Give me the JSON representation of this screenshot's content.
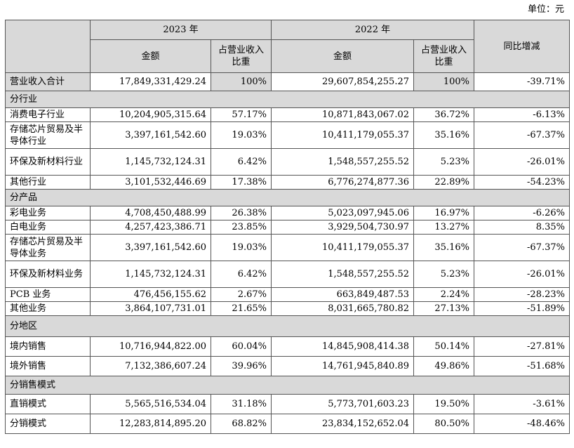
{
  "unit_label": "单位：元",
  "header": {
    "year_2023": "2023 年",
    "year_2022": "2022 年",
    "amount": "金额",
    "share": "占营业收入比重",
    "yoy": "同比增减"
  },
  "total": {
    "label": "营业收入合计",
    "amt2023": "17,849,331,429.24",
    "pct2023": "100%",
    "amt2022": "29,607,854,255.27",
    "pct2022": "100%",
    "yoy": "-39.71%"
  },
  "sections": [
    {
      "title": "分行业",
      "rows": [
        {
          "label": "消费电子行业",
          "amt2023": "10,204,905,315.64",
          "pct2023": "57.17%",
          "amt2022": "10,871,843,067.02",
          "pct2022": "36.72%",
          "yoy": "-6.13%"
        },
        {
          "label": "存储芯片贸易及半导体行业",
          "amt2023": "3,397,161,542.60",
          "pct2023": "19.03%",
          "amt2022": "10,411,179,055.37",
          "pct2022": "35.16%",
          "yoy": "-67.37%"
        },
        {
          "label": "环保及新材料行业",
          "amt2023": "1,145,732,124.31",
          "pct2023": "6.42%",
          "amt2022": "1,548,557,255.52",
          "pct2022": "5.23%",
          "yoy": "-26.01%"
        },
        {
          "label": "其他行业",
          "amt2023": "3,101,532,446.69",
          "pct2023": "17.38%",
          "amt2022": "6,776,274,877.36",
          "pct2022": "22.89%",
          "yoy": "-54.23%"
        }
      ]
    },
    {
      "title": "分产品",
      "rows": [
        {
          "label": "彩电业务",
          "amt2023": "4,708,450,488.99",
          "pct2023": "26.38%",
          "amt2022": "5,023,097,945.06",
          "pct2022": "16.97%",
          "yoy": "-6.26%"
        },
        {
          "label": "白电业务",
          "amt2023": "4,257,423,386.71",
          "pct2023": "23.85%",
          "amt2022": "3,929,504,730.97",
          "pct2022": "13.27%",
          "yoy": "8.35%"
        },
        {
          "label": "存储芯片贸易及半导体业务",
          "amt2023": "3,397,161,542.60",
          "pct2023": "19.03%",
          "amt2022": "10,411,179,055.37",
          "pct2022": "35.16%",
          "yoy": "-67.37%"
        },
        {
          "label": "环保及新材料业务",
          "amt2023": "1,145,732,124.31",
          "pct2023": "6.42%",
          "amt2022": "1,548,557,255.52",
          "pct2022": "5.23%",
          "yoy": "-26.01%"
        },
        {
          "label": "PCB 业务",
          "amt2023": "476,456,155.62",
          "pct2023": "2.67%",
          "amt2022": "663,849,487.53",
          "pct2022": "2.24%",
          "yoy": "-28.23%"
        },
        {
          "label": "其他业务",
          "amt2023": "3,864,107,731.01",
          "pct2023": "21.65%",
          "amt2022": "8,031,665,780.82",
          "pct2022": "27.13%",
          "yoy": "-51.89%"
        }
      ]
    },
    {
      "title": "分地区",
      "rows": [
        {
          "label": "境内销售",
          "amt2023": "10,716,944,822.00",
          "pct2023": "60.04%",
          "amt2022": "14,845,908,414.38",
          "pct2022": "50.14%",
          "yoy": "-27.81%"
        },
        {
          "label": "境外销售",
          "amt2023": "7,132,386,607.24",
          "pct2023": "39.96%",
          "amt2022": "14,761,945,840.89",
          "pct2022": "49.86%",
          "yoy": "-51.68%"
        }
      ]
    },
    {
      "title": "分销售模式",
      "rows": [
        {
          "label": "直销模式",
          "amt2023": "5,565,516,534.04",
          "pct2023": "31.18%",
          "amt2022": "5,773,701,603.23",
          "pct2022": "19.50%",
          "yoy": "-3.61%"
        },
        {
          "label": "分销模式",
          "amt2023": "12,283,814,895.20",
          "pct2023": "68.82%",
          "amt2022": "23,834,152,652.04",
          "pct2022": "80.50%",
          "yoy": "-48.46%"
        }
      ]
    }
  ]
}
